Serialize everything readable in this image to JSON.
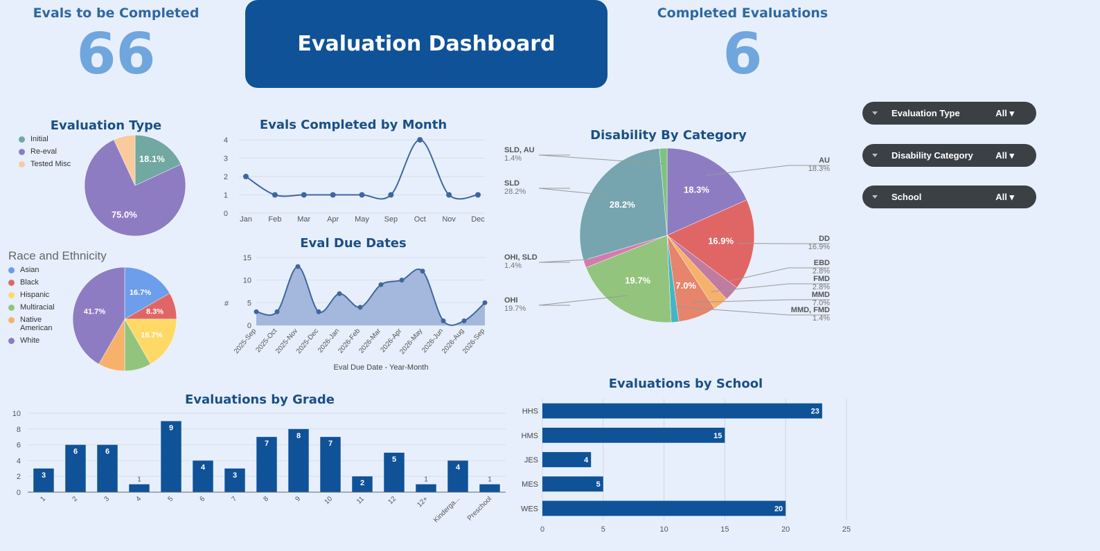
{
  "kpis": {
    "to_complete": {
      "label": "Evals to be Completed",
      "value": "66"
    },
    "completed": {
      "label": "Completed Evaluations",
      "value": "6"
    }
  },
  "banner": {
    "title": "Evaluation Dashboard"
  },
  "filters": [
    {
      "label": "Evaluation Type",
      "value": "All ▾"
    },
    {
      "label": "Disability Category",
      "value": "All ▾"
    },
    {
      "label": "School",
      "value": "All ▾"
    }
  ],
  "colors": {
    "accent": "#0f5297",
    "bar": "#0f5297",
    "line": "#3f66a0",
    "area": "#a3b8dc",
    "background": "#e6effb"
  },
  "chart_data": [
    {
      "id": "eval_type",
      "type": "pie",
      "title": "Evaluation Type",
      "slices": [
        {
          "name": "Initial",
          "value": 18.1,
          "color": "#71a8a2",
          "label": "18.1%"
        },
        {
          "name": "Re-eval",
          "value": 75.0,
          "color": "#8e7cc3",
          "label": "75.0%"
        },
        {
          "name": "Tested Misc",
          "value": 6.9,
          "color": "#f9cb9c",
          "label": ""
        }
      ]
    },
    {
      "id": "race",
      "type": "pie",
      "title": "Race and Ethnicity",
      "slices": [
        {
          "name": "Asian",
          "value": 16.7,
          "color": "#6d9eeb",
          "label": "16.7%"
        },
        {
          "name": "Black",
          "value": 8.3,
          "color": "#e06666",
          "label": "8.3%"
        },
        {
          "name": "Hispanic",
          "value": 16.7,
          "color": "#ffd966",
          "label": "16.7%"
        },
        {
          "name": "Multiracial",
          "value": 8.3,
          "color": "#93c47d",
          "label": ""
        },
        {
          "name": "Native American",
          "value": 8.3,
          "color": "#f6b26b",
          "label": ""
        },
        {
          "name": "White",
          "value": 41.7,
          "color": "#8e7cc3",
          "label": "41.7%"
        }
      ]
    },
    {
      "id": "by_month",
      "type": "line",
      "title": "Evals Completed by Month",
      "categories": [
        "Jan",
        "Feb",
        "Mar",
        "Apr",
        "May",
        "Sep",
        "Oct",
        "Nov",
        "Dec"
      ],
      "values": [
        2,
        1,
        1,
        1,
        1,
        1,
        4,
        1,
        1
      ],
      "ylim": [
        0,
        4
      ],
      "yticks": [
        0,
        1,
        2,
        3,
        4
      ]
    },
    {
      "id": "due_dates",
      "type": "area",
      "title": "Eval Due Dates",
      "xlabel": "Eval Due Date - Year-Month",
      "ylabel": "#",
      "categories": [
        "2025-Sep",
        "2025-Oct",
        "2025-Nov",
        "2025-Dec",
        "2026-Jan",
        "2026-Feb",
        "2026-Mar",
        "2026-Apr",
        "2026-May",
        "2026-Jun",
        "2026-Aug",
        "2026-Sep"
      ],
      "values": [
        3,
        3,
        13,
        3,
        7,
        4,
        9,
        10,
        12,
        1,
        1,
        5
      ],
      "ylim": [
        0,
        15
      ],
      "yticks": [
        0,
        5,
        10,
        15
      ]
    },
    {
      "id": "disability",
      "type": "pie",
      "title": "Disability By Category",
      "slices": [
        {
          "name": "AU",
          "value": 18.3,
          "color": "#8e7cc3",
          "label": "18.3%",
          "ext": "18.3%"
        },
        {
          "name": "DD",
          "value": 16.9,
          "color": "#e06666",
          "label": "16.9%",
          "ext": "16.9%"
        },
        {
          "name": "EBD",
          "value": 2.8,
          "color": "#c27ba0",
          "label": "",
          "ext": "2.8%"
        },
        {
          "name": "FMD",
          "value": 2.8,
          "color": "#f6b26b",
          "label": "",
          "ext": "2.8%"
        },
        {
          "name": "MMD",
          "value": 7.0,
          "color": "#e6846c",
          "label": "7.0%",
          "ext": "7.0%"
        },
        {
          "name": "MMD, FMD",
          "value": 1.4,
          "color": "#45b5c4",
          "label": "",
          "ext": "1.4%"
        },
        {
          "name": "OHI",
          "value": 19.7,
          "color": "#93c47d",
          "label": "19.7%",
          "ext": "19.7%"
        },
        {
          "name": "OHI, SLD",
          "value": 1.4,
          "color": "#d57ab0",
          "label": "",
          "ext": "1.4%"
        },
        {
          "name": "SLD",
          "value": 28.2,
          "color": "#76a5af",
          "label": "28.2%",
          "ext": "28.2%"
        },
        {
          "name": "SLD, AU",
          "value": 1.4,
          "color": "#7cc47d",
          "label": "",
          "ext": "1.4%"
        }
      ]
    },
    {
      "id": "by_grade",
      "type": "bar",
      "title": "Evaluations by Grade",
      "categories": [
        "1",
        "2",
        "3",
        "4",
        "5",
        "6",
        "7",
        "8",
        "9",
        "10",
        "11",
        "12",
        "12+",
        "Kinderga...",
        "Preschool"
      ],
      "values": [
        3,
        6,
        6,
        1,
        9,
        4,
        3,
        7,
        8,
        7,
        2,
        5,
        1,
        4,
        1
      ],
      "ylim": [
        0,
        10
      ],
      "yticks": [
        0,
        2,
        4,
        6,
        8,
        10
      ]
    },
    {
      "id": "by_school",
      "type": "bar",
      "orientation": "horizontal",
      "title": "Evaluations by School",
      "categories": [
        "HHS",
        "HMS",
        "JES",
        "MES",
        "WES"
      ],
      "values": [
        23,
        15,
        4,
        5,
        20
      ],
      "xlim": [
        0,
        25
      ],
      "xticks": [
        0,
        5,
        10,
        15,
        20,
        25
      ]
    }
  ]
}
